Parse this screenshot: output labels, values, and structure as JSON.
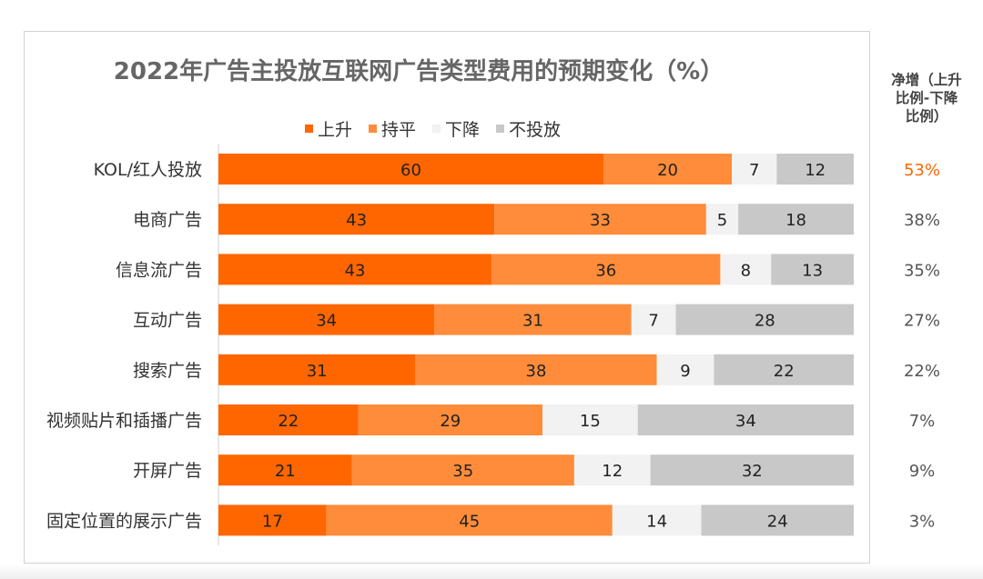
{
  "chart_data": {
    "type": "bar",
    "orientation": "horizontal",
    "stacked": true,
    "title": "2022年广告主投放互联网广告类型费用的预期变化（%）",
    "categories": [
      "KOL/红人投放",
      "电商广告",
      "信息流广告",
      "互动广告",
      "搜索广告",
      "视频贴片和插播广告",
      "开屏广告",
      "固定位置的展示广告"
    ],
    "series": [
      {
        "name": "上升",
        "color": "#ff6600",
        "values": [
          60,
          43,
          43,
          34,
          31,
          22,
          21,
          17
        ]
      },
      {
        "name": "持平",
        "color": "#ff8c3a",
        "values": [
          20,
          33,
          36,
          31,
          38,
          29,
          35,
          45
        ]
      },
      {
        "name": "下降",
        "color": "#f2f2f2",
        "values": [
          7,
          5,
          8,
          7,
          9,
          15,
          12,
          14
        ]
      },
      {
        "name": "不投放",
        "color": "#c8c8c8",
        "values": [
          12,
          18,
          13,
          28,
          22,
          34,
          32,
          24
        ]
      }
    ],
    "net_header": [
      "净增（上升",
      "比例-下降",
      "比例）"
    ],
    "net_values": [
      "53%",
      "38%",
      "35%",
      "27%",
      "22%",
      "7%",
      "9%",
      "3%"
    ],
    "net_highlight_color": "#ff6600",
    "legend_position": "top",
    "grid": false
  }
}
